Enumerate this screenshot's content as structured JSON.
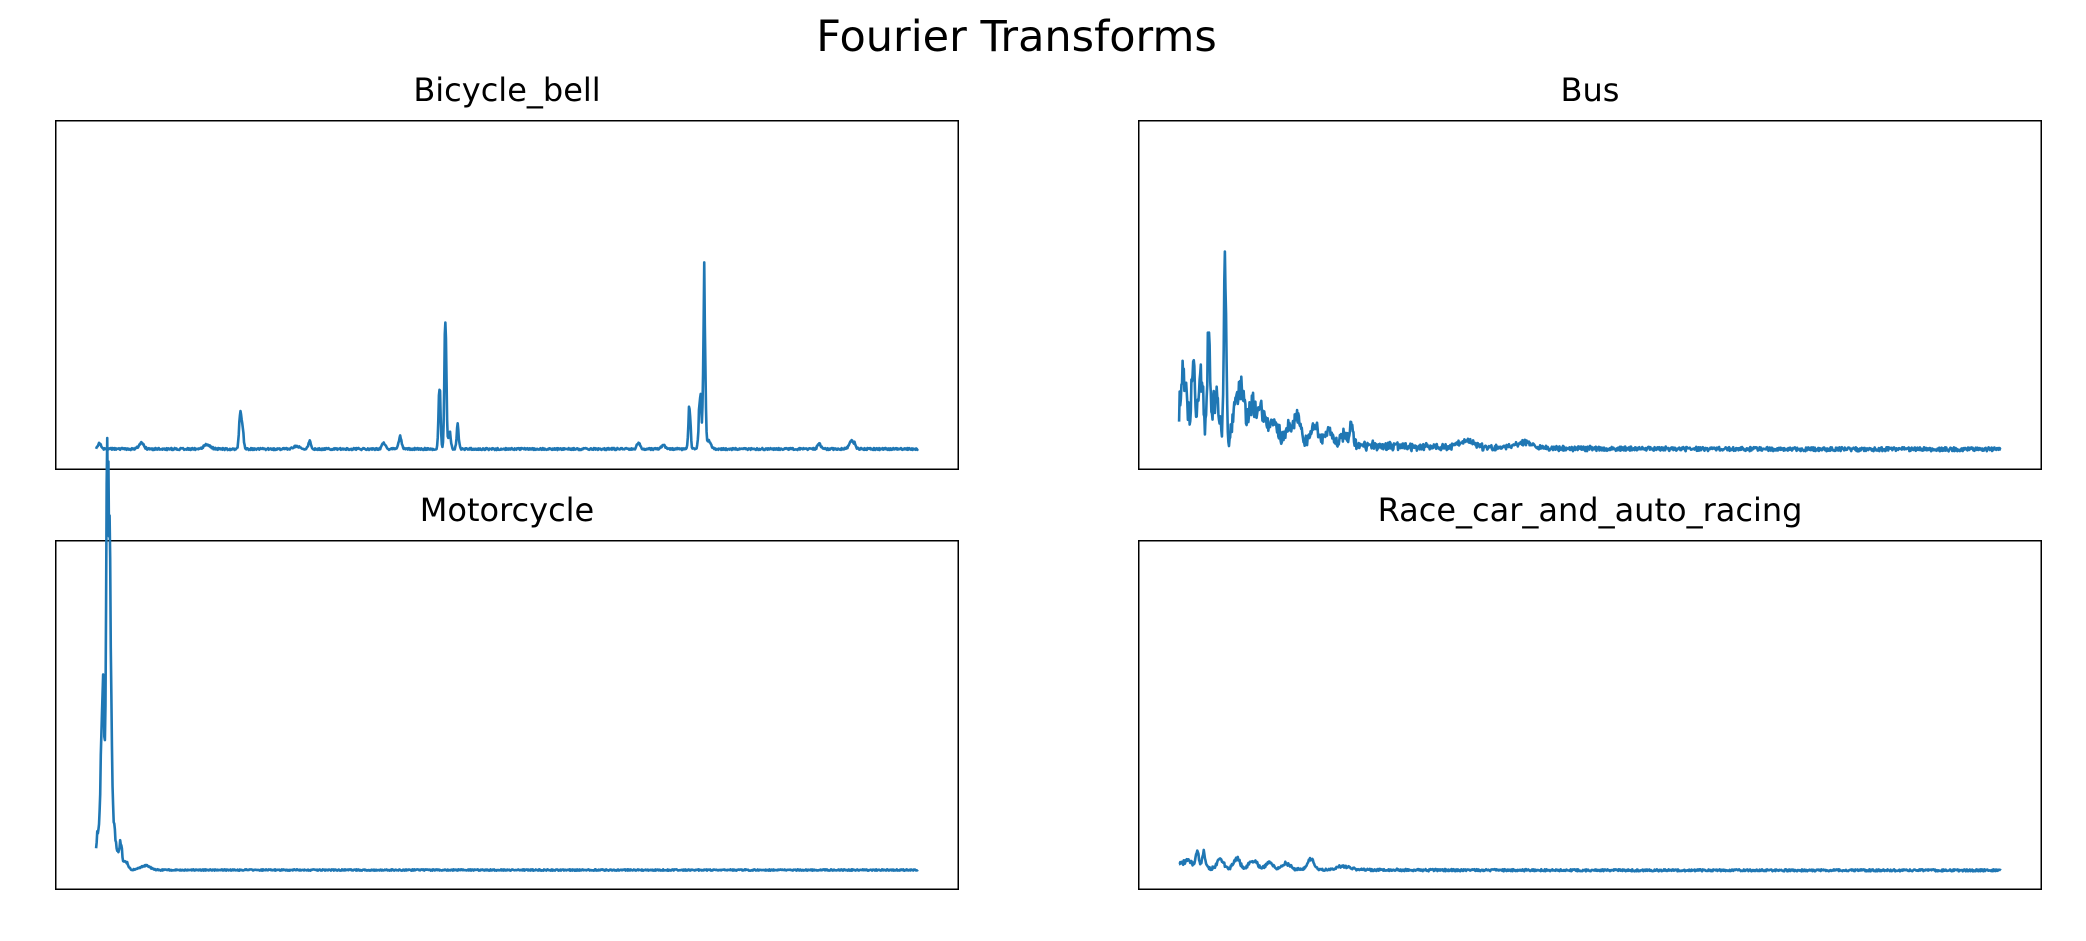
{
  "figure": {
    "title": "Fourier Transforms"
  },
  "colors": {
    "line": "#1f77b4",
    "frame": "#000000"
  },
  "chart_data": [
    {
      "type": "line",
      "title": "Bicycle_bell",
      "xlabel": "",
      "ylabel": "",
      "x_ticks": "none",
      "y_ticks": "none",
      "xlim": [
        -0.05,
        1.05
      ],
      "ylim": [
        -0.05,
        1.0
      ],
      "series": [
        {
          "style": "noisy-spectrum",
          "seed": 11,
          "baseline": 0.01,
          "noise": 0.006,
          "bumps": [
            {
              "x": 0.004,
              "h": 0.018,
              "w": 0.002
            },
            {
              "x": 0.055,
              "h": 0.02,
              "w": 0.003
            },
            {
              "x": 0.135,
              "h": 0.015,
              "w": 0.004
            },
            {
              "x": 0.26,
              "h": 0.027,
              "w": 0.0015
            },
            {
              "x": 0.178,
              "h": 0.09,
              "w": 0.0013
            },
            {
              "x": 0.175,
              "h": 0.12,
              "w": 0.0012
            },
            {
              "x": 0.244,
              "h": 0.01,
              "w": 0.004
            },
            {
              "x": 0.35,
              "h": 0.02,
              "w": 0.002
            },
            {
              "x": 0.37,
              "h": 0.045,
              "w": 0.0018
            },
            {
              "x": 0.418,
              "h": 0.21,
              "w": 0.0012
            },
            {
              "x": 0.425,
              "h": 0.43,
              "w": 0.0012
            },
            {
              "x": 0.43,
              "h": 0.06,
              "w": 0.0015
            },
            {
              "x": 0.44,
              "h": 0.085,
              "w": 0.0012
            },
            {
              "x": 0.66,
              "h": 0.02,
              "w": 0.002
            },
            {
              "x": 0.69,
              "h": 0.015,
              "w": 0.002
            },
            {
              "x": 0.722,
              "h": 0.16,
              "w": 0.0012
            },
            {
              "x": 0.735,
              "h": 0.19,
              "w": 0.0015
            },
            {
              "x": 0.74,
              "h": 0.56,
              "w": 0.0012
            },
            {
              "x": 0.745,
              "h": 0.03,
              "w": 0.003
            },
            {
              "x": 0.88,
              "h": 0.018,
              "w": 0.002
            },
            {
              "x": 0.92,
              "h": 0.03,
              "w": 0.003
            }
          ]
        }
      ]
    },
    {
      "type": "line",
      "title": "Bus",
      "xlabel": "",
      "ylabel": "",
      "x_ticks": "none",
      "y_ticks": "none",
      "xlim": [
        -0.05,
        1.05
      ],
      "ylim": [
        -0.05,
        1.0
      ],
      "series": [
        {
          "style": "noisy-spectrum",
          "seed": 23,
          "baseline": 0.006,
          "noise": 0.012,
          "decay": {
            "amp": 0.09,
            "rate": 6
          },
          "bumps": [
            {
              "x": 0.003,
              "h": 0.17,
              "w": 0.002
            },
            {
              "x": 0.008,
              "h": 0.16,
              "w": 0.003
            },
            {
              "x": 0.017,
              "h": 0.26,
              "w": 0.002
            },
            {
              "x": 0.026,
              "h": 0.21,
              "w": 0.003
            },
            {
              "x": 0.036,
              "h": 0.36,
              "w": 0.0015
            },
            {
              "x": 0.045,
              "h": 0.15,
              "w": 0.004
            },
            {
              "x": 0.056,
              "h": 0.63,
              "w": 0.0013
            },
            {
              "x": 0.07,
              "h": 0.14,
              "w": 0.004
            },
            {
              "x": 0.077,
              "h": 0.15,
              "w": 0.003
            },
            {
              "x": 0.088,
              "h": 0.13,
              "w": 0.004
            },
            {
              "x": 0.1,
              "h": 0.1,
              "w": 0.005
            },
            {
              "x": 0.115,
              "h": 0.07,
              "w": 0.005
            },
            {
              "x": 0.135,
              "h": 0.05,
              "w": 0.006
            },
            {
              "x": 0.145,
              "h": 0.08,
              "w": 0.004
            },
            {
              "x": 0.165,
              "h": 0.06,
              "w": 0.005
            },
            {
              "x": 0.182,
              "h": 0.05,
              "w": 0.004
            },
            {
              "x": 0.2,
              "h": 0.03,
              "w": 0.005
            },
            {
              "x": 0.21,
              "h": 0.07,
              "w": 0.002
            },
            {
              "x": 0.35,
              "h": 0.02,
              "w": 0.01
            },
            {
              "x": 0.42,
              "h": 0.02,
              "w": 0.01
            }
          ]
        }
      ]
    },
    {
      "type": "line",
      "title": "Motorcycle",
      "xlabel": "",
      "ylabel": "",
      "x_ticks": "none",
      "y_ticks": "none",
      "xlim": [
        -0.05,
        1.05
      ],
      "ylim": [
        -0.05,
        1.0
      ],
      "series": [
        {
          "style": "noisy-spectrum",
          "seed": 37,
          "baseline": 0.008,
          "noise": 0.004,
          "bumps": [
            {
              "x": 0.002,
              "h": 0.12,
              "w": 0.002
            },
            {
              "x": 0.006,
              "h": 0.3,
              "w": 0.0015
            },
            {
              "x": 0.009,
              "h": 0.55,
              "w": 0.0015
            },
            {
              "x": 0.013,
              "h": 0.96,
              "w": 0.0012
            },
            {
              "x": 0.015,
              "h": 0.8,
              "w": 0.0015
            },
            {
              "x": 0.017,
              "h": 0.6,
              "w": 0.0015
            },
            {
              "x": 0.019,
              "h": 0.15,
              "w": 0.002
            },
            {
              "x": 0.022,
              "h": 0.1,
              "w": 0.002
            },
            {
              "x": 0.026,
              "h": 0.05,
              "w": 0.002
            },
            {
              "x": 0.03,
              "h": 0.09,
              "w": 0.0015
            },
            {
              "x": 0.036,
              "h": 0.03,
              "w": 0.003
            },
            {
              "x": 0.06,
              "h": 0.015,
              "w": 0.006
            }
          ]
        }
      ]
    },
    {
      "type": "line",
      "title": "Race_car_and_auto_racing",
      "xlabel": "",
      "ylabel": "",
      "x_ticks": "none",
      "y_ticks": "none",
      "xlim": [
        -0.05,
        1.05
      ],
      "ylim": [
        -0.05,
        1.0
      ],
      "series": [
        {
          "style": "noisy-spectrum",
          "seed": 51,
          "baseline": 0.006,
          "noise": 0.006,
          "decay": {
            "amp": 0.01,
            "rate": 6
          },
          "bumps": [
            {
              "x": 0.003,
              "h": 0.02,
              "w": 0.003
            },
            {
              "x": 0.012,
              "h": 0.03,
              "w": 0.004
            },
            {
              "x": 0.022,
              "h": 0.06,
              "w": 0.002
            },
            {
              "x": 0.03,
              "h": 0.06,
              "w": 0.002
            },
            {
              "x": 0.05,
              "h": 0.035,
              "w": 0.004
            },
            {
              "x": 0.07,
              "h": 0.035,
              "w": 0.004
            },
            {
              "x": 0.09,
              "h": 0.03,
              "w": 0.005
            },
            {
              "x": 0.11,
              "h": 0.025,
              "w": 0.004
            },
            {
              "x": 0.13,
              "h": 0.02,
              "w": 0.005
            },
            {
              "x": 0.16,
              "h": 0.035,
              "w": 0.004
            },
            {
              "x": 0.2,
              "h": 0.012,
              "w": 0.008
            }
          ]
        }
      ]
    }
  ]
}
